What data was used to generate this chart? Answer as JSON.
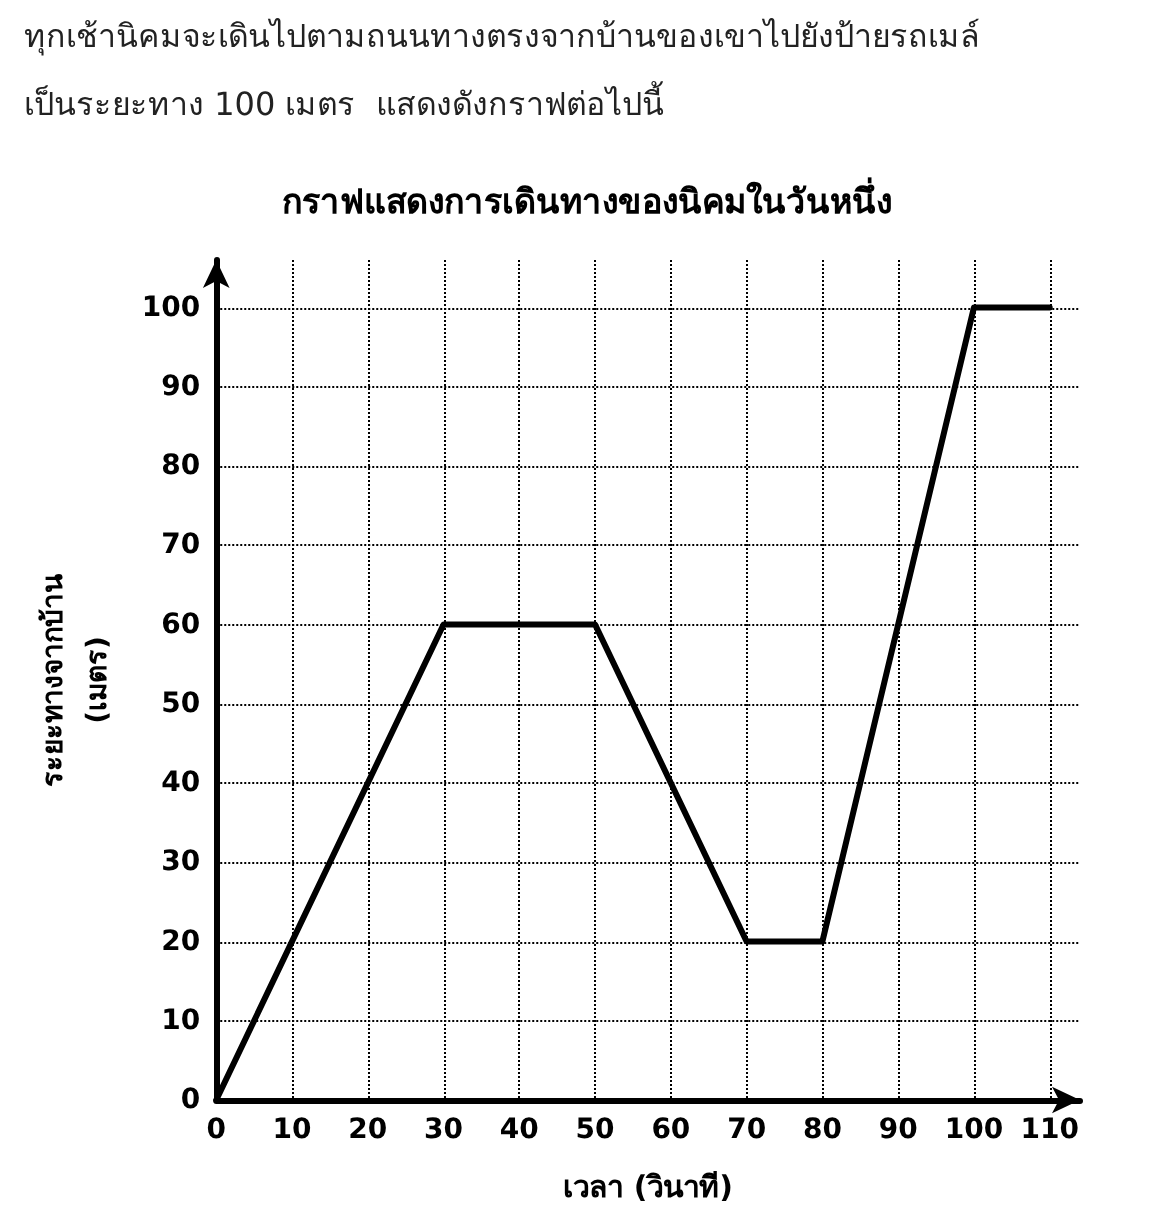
{
  "chart_data": {
    "type": "line",
    "title": "กราฟแสดงการเดินทางของนิคมในวันหนึ่ง",
    "annotations": [
      "ทุกเช้านิคมจะเดินไปตามถนนทางตรงจากบ้านของเขาไปยังป้ายรถเมล์",
      "เป็นระยะทาง 100 เมตร  แสดงดังกราฟต่อไปนี้"
    ],
    "xlabel": "เวลา (วินาที)",
    "ylabel": "ระยะทางจากบ้าน\n(เมตร)",
    "x": [
      0,
      30,
      50,
      70,
      80,
      100,
      110
    ],
    "series": [
      {
        "color": "#000000",
        "values": [
          0,
          60,
          60,
          20,
          20,
          100,
          100
        ]
      }
    ],
    "xlim": [
      0,
      114
    ],
    "xticks": [
      0,
      10,
      20,
      30,
      40,
      50,
      60,
      70,
      80,
      90,
      100,
      110
    ],
    "ylim": [
      0,
      106
    ],
    "yticks": [
      0,
      10,
      20,
      30,
      40,
      50,
      60,
      70,
      80,
      90,
      100
    ],
    "grid": true,
    "marker": "none",
    "line_style": "solid"
  }
}
